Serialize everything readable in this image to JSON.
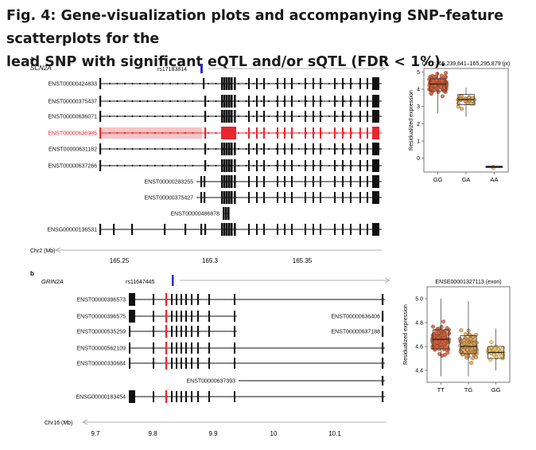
{
  "caption": {
    "line1": "Fig. 4: Gene-visualization plots and accompanying SNP–feature scatterplots for the",
    "line2": "lead SNP with significant eQTL and/or sQTL (FDR < 1%)."
  },
  "panel_a": {
    "label": "a",
    "gene": "SCN2A",
    "snp": "rs17183814",
    "chrom_label": "Chr2 (Mb)",
    "axis_ticks": [
      "165.25",
      "165.3",
      "165.35"
    ],
    "highlight_color": "#e8262b",
    "transcripts": [
      "ENST00000424833",
      "ENST00000375437",
      "ENST00000636071",
      "ENST00000636985",
      "ENST00000631182",
      "ENST00000637266",
      "ENST00000283255",
      "ENST00000375427",
      "ENST00000486878",
      "ENSG00000136531"
    ],
    "highlighted_transcript": "ENST00000636985"
  },
  "panel_b": {
    "label": "b",
    "gene": "GRIN2A",
    "snp": "rs11647445",
    "chrom_label": "Chr16 (Mb)",
    "axis_ticks": [
      "9.7",
      "9.8",
      "9.9",
      "10",
      "10.1"
    ],
    "transcripts_left": [
      "ENST00000396573",
      "ENST00000396575",
      "ENST00000535259",
      "ENST00000562109",
      "ENST00000330684"
    ],
    "transcripts_right": [
      "ENST00000636406",
      "ENST00000637188"
    ],
    "transcript_mid": "ENST00000637393",
    "gene_row": "ENSG00000183454"
  },
  "chart_data": [
    {
      "type": "scatter",
      "title": "Chr2:165,239,641–165,295,879 (jx)",
      "ylabel": "Residualized expression",
      "categories": [
        "GG",
        "GA",
        "AA"
      ],
      "ylim": [
        -0.8,
        5.2
      ],
      "yticks": [
        0,
        1,
        2,
        3,
        4,
        5
      ],
      "box_stats": [
        {
          "group": "GG",
          "q1": 3.9,
          "median": 4.3,
          "q3": 4.6,
          "whisker_low": 2.6,
          "whisker_high": 5.0
        },
        {
          "group": "GA",
          "q1": 3.1,
          "median": 3.4,
          "q3": 3.7,
          "whisker_low": 2.4,
          "whisker_high": 4.1
        },
        {
          "group": "AA",
          "q1": -0.55,
          "median": -0.5,
          "q3": -0.45,
          "whisker_low": -0.55,
          "whisker_high": -0.45
        }
      ],
      "point_counts": [
        120,
        30,
        2
      ],
      "point_colors": {
        "GG": "#d4603c",
        "GA": "#d9a357",
        "AA": "#f3cf6a"
      }
    },
    {
      "type": "scatter",
      "title": "ENSE00001327113 (exon)",
      "ylabel": "Residualized expression",
      "categories": [
        "TT",
        "TG",
        "GG"
      ],
      "ylim": [
        4.3,
        5.1
      ],
      "yticks": [
        4.4,
        4.6,
        4.8,
        5.0
      ],
      "ytick_labels": [
        "4.4",
        "4.6",
        "4.8",
        "5.0"
      ],
      "box_stats": [
        {
          "group": "TT",
          "q1": 4.58,
          "median": 4.66,
          "q3": 4.74,
          "whisker_low": 4.35,
          "whisker_high": 5.0
        },
        {
          "group": "TG",
          "q1": 4.54,
          "median": 4.6,
          "q3": 4.69,
          "whisker_low": 4.35,
          "whisker_high": 4.98
        },
        {
          "group": "GG",
          "q1": 4.5,
          "median": 4.55,
          "q3": 4.6,
          "whisker_low": 4.4,
          "whisker_high": 4.75
        }
      ],
      "point_counts": [
        120,
        110,
        35
      ],
      "point_colors": {
        "TT": "#d4603c",
        "TG": "#d9a357",
        "GG": "#f3cf6a"
      }
    }
  ]
}
